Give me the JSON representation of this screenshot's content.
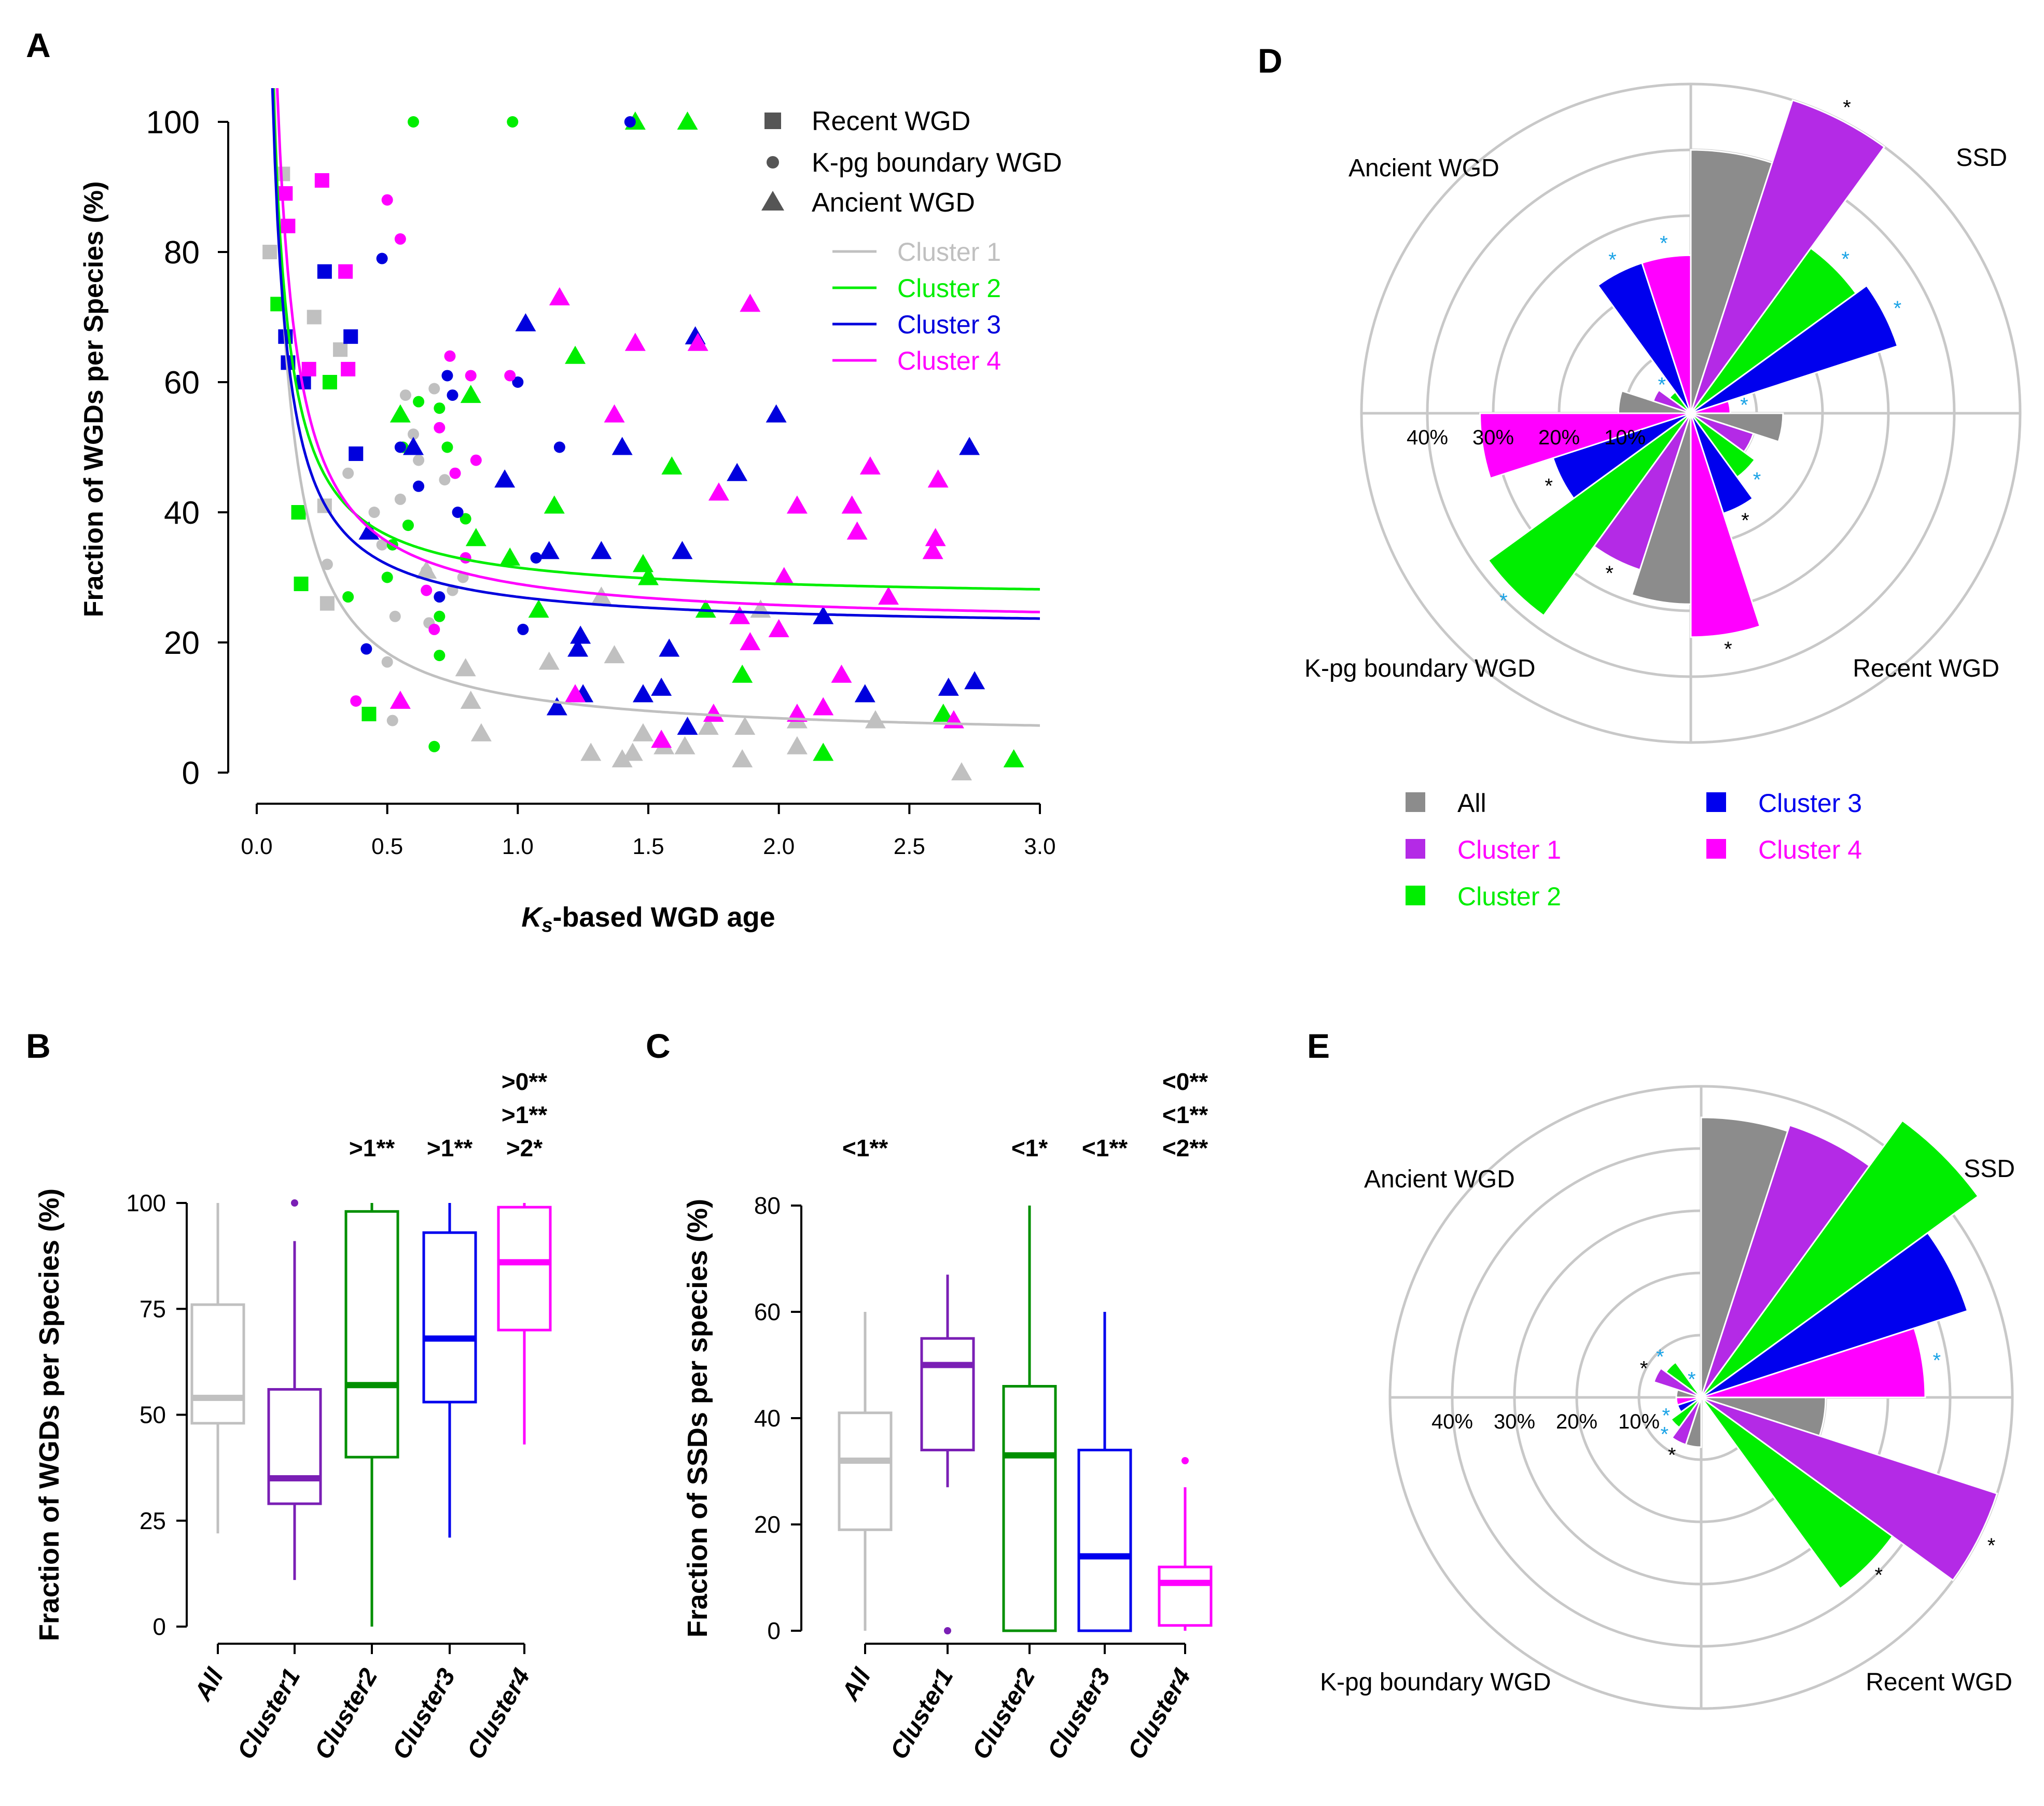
{
  "chart_data": [
    {
      "panel": "A",
      "type": "scatter",
      "xlabel_italic": "K",
      "xlabel_sub": "s",
      "xlabel_rest": "-based WGD age",
      "ylabel": "Fraction of WGDs per Species (%)",
      "xlim": [
        0,
        3
      ],
      "ylim": [
        0,
        100
      ],
      "xticks": [
        "0.0",
        "0.5",
        "1.0",
        "1.5",
        "2.0",
        "2.5",
        "3.0"
      ],
      "yticks": [
        "0",
        "20",
        "40",
        "60",
        "80",
        "100"
      ],
      "shape_legend": [
        "Recent WGD",
        "K-pg boundary WGD",
        "Ancient WGD"
      ],
      "clusters": [
        {
          "name": "Cluster 1",
          "color": "#c0c0c0",
          "fit": {
            "a": 5.0,
            "b": 6.7
          }
        },
        {
          "name": "Cluster 2",
          "color": "#00ee00",
          "fit": {
            "a": 26.5,
            "b": 5.0
          }
        },
        {
          "name": "Cluster 3",
          "color": "#0000dd",
          "fit": {
            "a": 22.0,
            "b": 5.0
          }
        },
        {
          "name": "Cluster 4",
          "color": "#ff00ff",
          "fit": {
            "a": 22.5,
            "b": 6.5
          }
        }
      ],
      "points": {
        "Cluster 1": {
          "recent": [
            [
              0.05,
              80
            ],
            [
              0.1,
              92
            ],
            [
              0.22,
              70
            ],
            [
              0.26,
              41
            ],
            [
              0.27,
              26
            ],
            [
              0.32,
              65
            ]
          ],
          "kpg": [
            [
              0.48,
              35
            ],
            [
              0.5,
              17
            ],
            [
              0.52,
              8
            ],
            [
              0.53,
              24
            ],
            [
              0.55,
              42
            ],
            [
              0.57,
              58
            ],
            [
              0.6,
              52
            ],
            [
              0.62,
              48
            ],
            [
              0.65,
              31
            ],
            [
              0.66,
              23
            ],
            [
              0.68,
              59
            ],
            [
              0.72,
              45
            ],
            [
              0.75,
              28
            ],
            [
              0.79,
              30
            ],
            [
              0.27,
              32
            ],
            [
              0.35,
              46
            ],
            [
              0.45,
              40
            ],
            [
              0.58,
              38
            ]
          ],
          "ancient": [
            [
              0.65,
              31
            ],
            [
              0.8,
              16
            ],
            [
              0.82,
              11
            ],
            [
              0.86,
              6
            ],
            [
              1.12,
              17
            ],
            [
              1.28,
              3
            ],
            [
              1.32,
              27
            ],
            [
              1.37,
              18
            ],
            [
              1.4,
              2
            ],
            [
              1.44,
              3
            ],
            [
              1.48,
              6
            ],
            [
              1.56,
              4
            ],
            [
              1.64,
              4
            ],
            [
              1.73,
              7
            ],
            [
              1.86,
              2
            ],
            [
              1.87,
              7
            ],
            [
              1.93,
              25
            ],
            [
              2.07,
              4
            ],
            [
              2.07,
              8
            ],
            [
              2.37,
              8
            ],
            [
              2.7,
              0
            ]
          ]
        },
        "Cluster 2": {
          "recent": [
            [
              0.08,
              72
            ],
            [
              0.16,
              40
            ],
            [
              0.17,
              29
            ],
            [
              0.28,
              60
            ],
            [
              0.43,
              9
            ]
          ],
          "kpg": [
            [
              0.35,
              27
            ],
            [
              0.5,
              30
            ],
            [
              0.52,
              35
            ],
            [
              0.56,
              50
            ],
            [
              0.58,
              38
            ],
            [
              0.6,
              100
            ],
            [
              0.62,
              57
            ],
            [
              0.68,
              4
            ],
            [
              0.7,
              24
            ],
            [
              0.7,
              18
            ],
            [
              0.7,
              56
            ],
            [
              0.73,
              50
            ],
            [
              0.8,
              39
            ],
            [
              0.98,
              100
            ]
          ],
          "ancient": [
            [
              0.55,
              55
            ],
            [
              0.82,
              58
            ],
            [
              0.84,
              36
            ],
            [
              0.97,
              33
            ],
            [
              1.08,
              25
            ],
            [
              1.14,
              41
            ],
            [
              1.22,
              64
            ],
            [
              1.45,
              100
            ],
            [
              1.48,
              32
            ],
            [
              1.5,
              30
            ],
            [
              1.59,
              47
            ],
            [
              1.65,
              100
            ],
            [
              1.72,
              25
            ],
            [
              1.86,
              15
            ],
            [
              2.17,
              3
            ],
            [
              2.63,
              9
            ],
            [
              2.9,
              2
            ]
          ]
        },
        "Cluster 3": {
          "recent": [
            [
              0.11,
              67
            ],
            [
              0.12,
              63
            ],
            [
              0.18,
              60
            ],
            [
              0.26,
              77
            ],
            [
              0.36,
              67
            ],
            [
              0.38,
              49
            ]
          ],
          "kpg": [
            [
              0.42,
              19
            ],
            [
              0.48,
              79
            ],
            [
              0.55,
              50
            ],
            [
              0.62,
              44
            ],
            [
              0.7,
              27
            ],
            [
              0.73,
              61
            ],
            [
              0.75,
              58
            ],
            [
              0.77,
              40
            ],
            [
              1.0,
              60
            ],
            [
              1.02,
              22
            ],
            [
              1.07,
              33
            ],
            [
              1.16,
              50
            ],
            [
              1.43,
              100
            ]
          ],
          "ancient": [
            [
              0.43,
              37
            ],
            [
              0.6,
              50
            ],
            [
              0.95,
              45
            ],
            [
              1.03,
              69
            ],
            [
              1.12,
              34
            ],
            [
              1.15,
              10
            ],
            [
              1.23,
              19
            ],
            [
              1.24,
              21
            ],
            [
              1.25,
              12
            ],
            [
              1.32,
              34
            ],
            [
              1.4,
              50
            ],
            [
              1.48,
              12
            ],
            [
              1.55,
              13
            ],
            [
              1.58,
              19
            ],
            [
              1.63,
              34
            ],
            [
              1.65,
              7
            ],
            [
              1.68,
              67
            ],
            [
              1.84,
              46
            ],
            [
              1.99,
              55
            ],
            [
              2.17,
              24
            ],
            [
              2.33,
              12
            ],
            [
              2.65,
              13
            ],
            [
              2.73,
              50
            ],
            [
              2.75,
              14
            ]
          ]
        },
        "Cluster 4": {
          "recent": [
            [
              0.11,
              89
            ],
            [
              0.12,
              84
            ],
            [
              0.25,
              91
            ],
            [
              0.2,
              62
            ],
            [
              0.34,
              77
            ],
            [
              0.35,
              62
            ]
          ],
          "kpg": [
            [
              0.38,
              11
            ],
            [
              0.5,
              88
            ],
            [
              0.55,
              82
            ],
            [
              0.65,
              28
            ],
            [
              0.68,
              22
            ],
            [
              0.7,
              53
            ],
            [
              0.74,
              64
            ],
            [
              0.76,
              46
            ],
            [
              0.8,
              33
            ],
            [
              0.82,
              61
            ],
            [
              0.84,
              48
            ],
            [
              0.97,
              61
            ]
          ],
          "ancient": [
            [
              0.55,
              11
            ],
            [
              1.16,
              73
            ],
            [
              1.22,
              12
            ],
            [
              1.37,
              55
            ],
            [
              1.45,
              66
            ],
            [
              1.55,
              5
            ],
            [
              1.69,
              66
            ],
            [
              1.75,
              9
            ],
            [
              1.77,
              43
            ],
            [
              1.85,
              24
            ],
            [
              1.89,
              20
            ],
            [
              1.89,
              72
            ],
            [
              2.0,
              22
            ],
            [
              2.02,
              30
            ],
            [
              2.07,
              41
            ],
            [
              2.07,
              9
            ],
            [
              2.17,
              10
            ],
            [
              2.24,
              15
            ],
            [
              2.28,
              41
            ],
            [
              2.3,
              37
            ],
            [
              2.35,
              47
            ],
            [
              2.42,
              27
            ],
            [
              2.59,
              34
            ],
            [
              2.6,
              36
            ],
            [
              2.61,
              45
            ],
            [
              2.67,
              8
            ]
          ]
        }
      }
    },
    {
      "panel": "B",
      "type": "box",
      "ylabel": "Fraction of WGDs per Species (%)",
      "ylim": [
        0,
        100
      ],
      "yticks": [
        "0",
        "25",
        "50",
        "75",
        "100"
      ],
      "categories": [
        "All",
        "Cluster1",
        "Cluster2",
        "Cluster3",
        "Cluster4"
      ],
      "colors": [
        "#c0c0c0",
        "#7a1fb5",
        "#008f00",
        "#0000ee",
        "#ff00ff"
      ],
      "boxes": [
        {
          "min": 22,
          "q1": 48,
          "median": 54,
          "q3": 76,
          "max": 100,
          "outliers": []
        },
        {
          "min": 11,
          "q1": 29,
          "median": 35,
          "q3": 56,
          "max": 91,
          "outliers": [
            100
          ]
        },
        {
          "min": 0,
          "q1": 40,
          "median": 57,
          "q3": 98,
          "max": 100,
          "outliers": []
        },
        {
          "min": 21,
          "q1": 53,
          "median": 68,
          "q3": 93,
          "max": 100,
          "outliers": []
        },
        {
          "min": 43,
          "q1": 70,
          "median": 86,
          "q3": 99,
          "max": 100,
          "outliers": []
        }
      ],
      "annotations": [
        [],
        [],
        [
          ">1**"
        ],
        [
          ">1**"
        ],
        [
          ">0**",
          ">1**",
          ">2*"
        ]
      ]
    },
    {
      "panel": "C",
      "type": "box",
      "ylabel": "Fraction of SSDs per species (%)",
      "ylim": [
        0,
        80
      ],
      "yticks": [
        "0",
        "20",
        "40",
        "60",
        "80"
      ],
      "categories": [
        "All",
        "Cluster1",
        "Cluster2",
        "Cluster3",
        "Cluster4"
      ],
      "colors": [
        "#c0c0c0",
        "#7a1fb5",
        "#008f00",
        "#0000ee",
        "#ff00ff"
      ],
      "boxes": [
        {
          "min": 0,
          "q1": 19,
          "median": 32,
          "q3": 41,
          "max": 60,
          "outliers": []
        },
        {
          "min": 27,
          "q1": 34,
          "median": 50,
          "q3": 55,
          "max": 67,
          "outliers": [
            0
          ]
        },
        {
          "min": 0,
          "q1": 0,
          "median": 33,
          "q3": 46,
          "max": 80,
          "outliers": []
        },
        {
          "min": 0,
          "q1": 0,
          "median": 14,
          "q3": 34,
          "max": 60,
          "outliers": []
        },
        {
          "min": 0,
          "q1": 1,
          "median": 9,
          "q3": 12,
          "max": 27,
          "outliers": [
            32
          ]
        }
      ],
      "annotations": [
        [
          "<1**"
        ],
        [],
        [
          "<1*"
        ],
        [
          "<1**"
        ],
        [
          "<0**",
          "<1**",
          "<2**"
        ]
      ]
    },
    {
      "panel": "D",
      "type": "polar-bar",
      "rticks": [
        "40%",
        "30%",
        "20%",
        "10%"
      ],
      "rmax": 50,
      "sectors": [
        "SSD",
        "Recent WGD",
        "K-pg boundary WGD",
        "Ancient WGD"
      ],
      "series": [
        {
          "name": "All",
          "color": "#8c8c8c",
          "values": [
            40,
            14,
            29,
            11
          ]
        },
        {
          "name": "Cluster 1",
          "color": "#b42ae6",
          "values": [
            50,
            10,
            25,
            6
          ]
        },
        {
          "name": "Cluster 2",
          "color": "#00ee00",
          "values": [
            31,
            12,
            38,
            4
          ]
        },
        {
          "name": "Cluster 3",
          "color": "#0000ee",
          "values": [
            33,
            16,
            22,
            24
          ]
        },
        {
          "name": "Cluster 4",
          "color": "#ff00ff",
          "values": [
            6,
            34,
            32,
            24
          ]
        }
      ],
      "stars": [
        [
          "",
          "",
          "",
          ""
        ],
        [
          "*",
          "",
          "*",
          ""
        ],
        [
          "*",
          "*",
          "*",
          "*"
        ],
        [
          "*",
          "*",
          "*",
          "*"
        ],
        [
          "*",
          "*",
          "",
          "*"
        ]
      ],
      "legend": [
        "All",
        "Cluster 1",
        "Cluster 2",
        "Cluster 3",
        "Cluster 4"
      ]
    },
    {
      "panel": "E",
      "type": "polar-bar",
      "rticks": [
        "40%",
        "30%",
        "20%",
        "10%"
      ],
      "rmax": 50,
      "sectors": [
        "SSD",
        "Recent WGD",
        "K-pg boundary WGD",
        "Ancient WGD"
      ],
      "series": [
        {
          "name": "All",
          "color": "#8c8c8c",
          "values": [
            45,
            20,
            8,
            4
          ]
        },
        {
          "name": "Cluster 1",
          "color": "#b42ae6",
          "values": [
            46,
            50,
            8,
            8
          ]
        },
        {
          "name": "Cluster 2",
          "color": "#00ee00",
          "values": [
            55,
            38,
            6,
            7
          ]
        },
        {
          "name": "Cluster 3",
          "color": "#0000ee",
          "values": [
            45,
            0,
            4,
            1
          ]
        },
        {
          "name": "Cluster 4",
          "color": "#ff00ff",
          "values": [
            36,
            0,
            4,
            1
          ]
        }
      ],
      "stars": [
        [
          "",
          "",
          "",
          ""
        ],
        [
          "",
          "*",
          "*",
          "*"
        ],
        [
          "",
          "*",
          "*",
          "*"
        ],
        [
          "",
          "",
          "*",
          "*"
        ],
        [
          "*",
          "",
          "",
          ""
        ]
      ]
    }
  ],
  "panel_labels": {
    "A": "A",
    "B": "B",
    "C": "C",
    "D": "D",
    "E": "E"
  }
}
